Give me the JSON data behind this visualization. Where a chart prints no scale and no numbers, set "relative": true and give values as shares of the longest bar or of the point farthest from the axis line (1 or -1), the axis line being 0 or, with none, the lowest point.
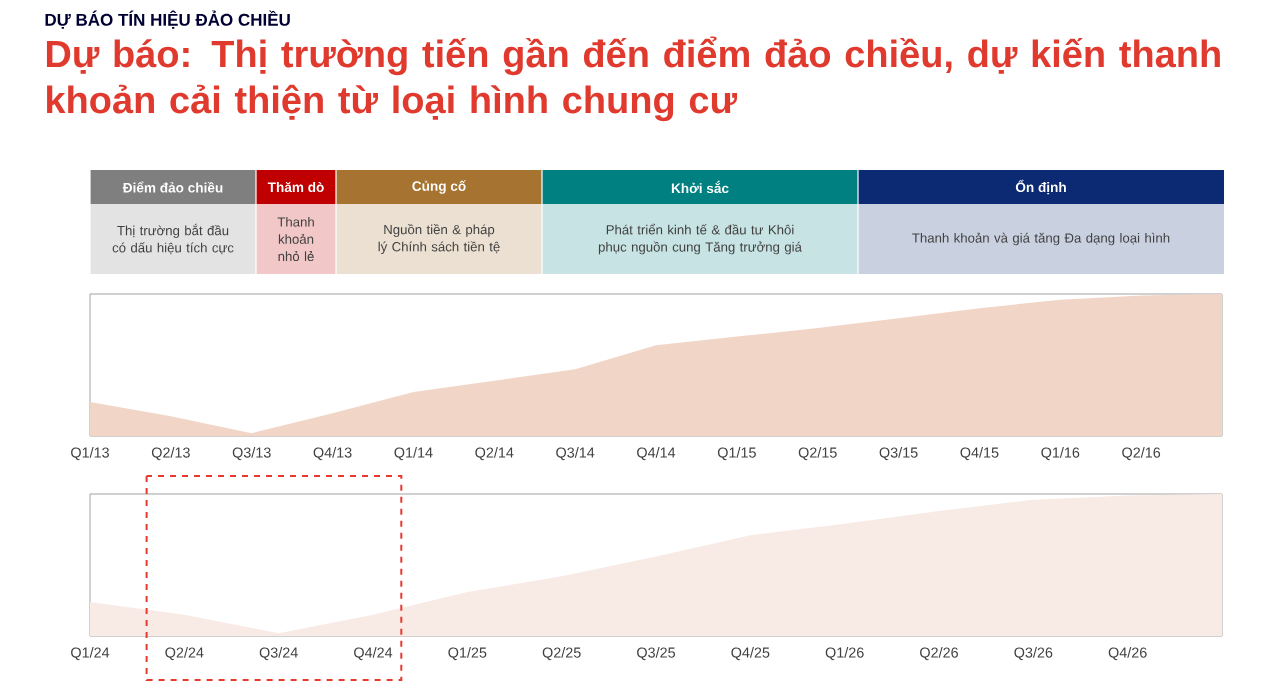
{
  "chart_data": [
    {
      "type": "other",
      "subtitle": "DỰ BÁO TÍN HIỆU ĐẢO CHIỀU",
      "title": "Dự báo: Thị trường tiến gần đến điểm đảo chiều, dự kiến thanh khoản cải thiện từ loại hình chung cư",
      "categories": [
        "Điểm đảo chiều",
        "Thăm dò",
        "Củng cố",
        "Khởi sắc",
        "Ổn định"
      ],
      "colors": [
        "#7f7f7f",
        "#c00000",
        "#a67330",
        "#008080",
        "#0b2a73"
      ],
      "annotations": [
        "Thị trường bắt đầu có dấu hiệu tích cực",
        "Thanh khoản nhỏ lẻ",
        "Nguồn tiền & pháp lý Chính sách tiền tệ",
        "Phát triển kinh tế & đầu tư Khôi phục nguồn cung Tăng trưởng giá",
        "Thanh khoản và giá tăng Đa dạng loại hình"
      ]
    },
    {
      "type": "area",
      "relative": true,
      "color": "#f1d6c8",
      "categories": [
        "Q1/13",
        "Q2/13",
        "Q3/13",
        "Q4/13",
        "Q1/14",
        "Q2/14",
        "Q3/14",
        "Q4/14",
        "Q1/15",
        "Q2/15",
        "Q3/15",
        "Q4/15",
        "Q1/16",
        "Q2/16",
        null
      ],
      "values": [
        0.24,
        0.14,
        0.02,
        0.16,
        0.31,
        0.39,
        0.47,
        0.64,
        0.7,
        0.76,
        0.83,
        0.9,
        0.96,
        0.99,
        1
      ]
    },
    {
      "type": "area",
      "relative": true,
      "color": "#f8ebe6",
      "categories": [
        "Q1/24",
        "Q2/24",
        "Q3/24",
        "Q4/24",
        "Q1/25",
        "Q2/25",
        "Q3/25",
        "Q4/25",
        "Q1/26",
        "Q2/26",
        "Q3/26",
        "Q4/26",
        null
      ],
      "values": [
        0.24,
        0.15,
        0.02,
        0.15,
        0.31,
        0.42,
        0.56,
        0.71,
        0.79,
        0.88,
        0.96,
        0.99,
        1
      ]
    }
  ]
}
